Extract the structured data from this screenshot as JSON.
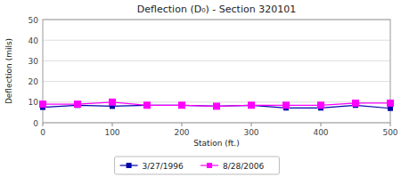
{
  "chart_data": {
    "type": "line",
    "title": "Deflection (D₀) - Section 320101",
    "x_label": "Station (ft.)",
    "y_label": "Deflection (mils)",
    "x": [
      0,
      50,
      100,
      150,
      200,
      250,
      300,
      350,
      400,
      450,
      500
    ],
    "series": [
      {
        "name": "3/27/1996",
        "color": "#0000AA",
        "marker": "square",
        "values": [
          7.5,
          8.5,
          8.0,
          8.5,
          8.5,
          8.0,
          8.5,
          7.2,
          7.2,
          8.5,
          7.0
        ]
      },
      {
        "name": "8/28/2006",
        "color": "#FF00FF",
        "marker": "square",
        "values": [
          9.0,
          9.0,
          10.0,
          8.5,
          8.5,
          8.0,
          8.5,
          8.5,
          8.5,
          9.5,
          9.5
        ]
      }
    ],
    "xlim": [
      0,
      500
    ],
    "ylim": [
      0,
      50
    ],
    "xticks": [
      0,
      100,
      200,
      300,
      400,
      500
    ],
    "yticks": [
      0,
      10,
      20,
      30,
      40,
      50
    ],
    "grid": true,
    "legend": "bottom"
  }
}
